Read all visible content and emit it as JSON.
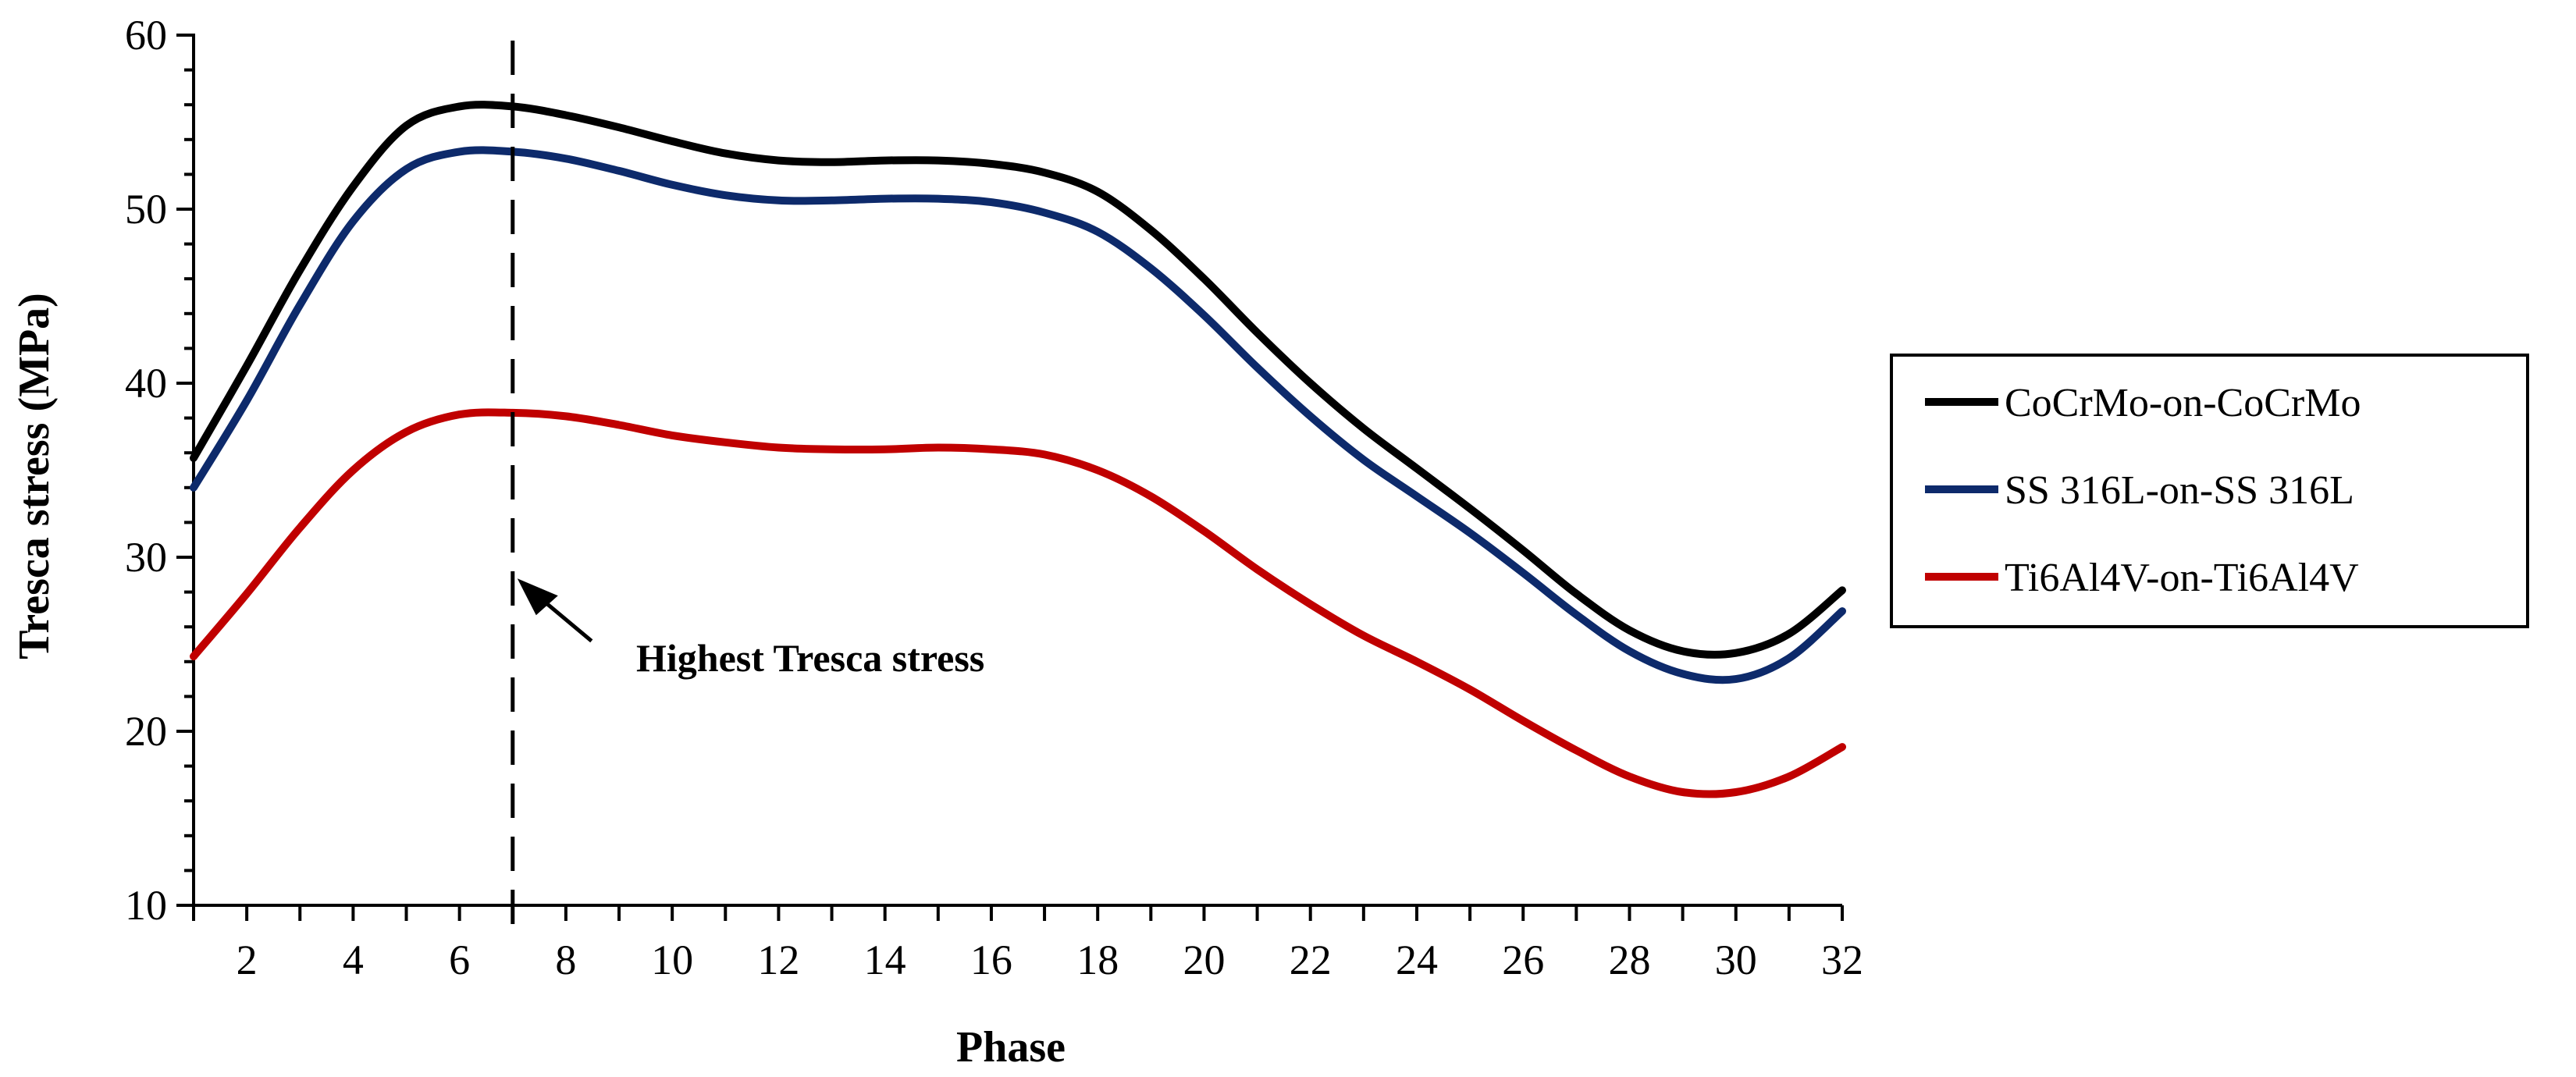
{
  "chart_data": {
    "type": "line",
    "title": "",
    "xlabel": "Phase",
    "ylabel": "Tresca stress (MPa)",
    "xlim": [
      1,
      32
    ],
    "ylim": [
      10,
      60
    ],
    "xticks": [
      "2",
      "4",
      "6",
      "8",
      "10",
      "12",
      "14",
      "16",
      "18",
      "20",
      "22",
      "24",
      "26",
      "28",
      "30",
      "32"
    ],
    "yticks": [
      "10",
      "20",
      "30",
      "40",
      "50",
      "60"
    ],
    "x": [
      1,
      2,
      3,
      4,
      5,
      6,
      7,
      8,
      9,
      10,
      11,
      12,
      13,
      14,
      15,
      16,
      17,
      18,
      19,
      20,
      21,
      22,
      23,
      24,
      25,
      26,
      27,
      28,
      29,
      30,
      31,
      32
    ],
    "series": [
      {
        "name": "CoCrMo-on-CoCrMo",
        "color": "#000000",
        "values": [
          35.7,
          41.0,
          46.5,
          51.3,
          54.8,
          55.9,
          55.9,
          55.4,
          54.7,
          53.9,
          53.2,
          52.8,
          52.7,
          52.8,
          52.8,
          52.6,
          52.1,
          51.0,
          48.8,
          46.0,
          42.9,
          40.0,
          37.4,
          35.1,
          32.8,
          30.4,
          27.9,
          25.8,
          24.6,
          24.5,
          25.6,
          28.1
        ]
      },
      {
        "name": "SS 316L-on-SS 316L",
        "color": "#0d2a6b",
        "values": [
          34.0,
          39.0,
          44.5,
          49.3,
          52.3,
          53.3,
          53.3,
          52.9,
          52.2,
          51.4,
          50.8,
          50.5,
          50.5,
          50.6,
          50.6,
          50.4,
          49.8,
          48.7,
          46.6,
          43.9,
          40.9,
          38.1,
          35.6,
          33.5,
          31.4,
          29.1,
          26.7,
          24.6,
          23.3,
          23.0,
          24.2,
          26.9
        ]
      },
      {
        "name": "Ti6Al4V-on-Ti6Al4V",
        "color": "#c00000",
        "values": [
          24.3,
          27.9,
          31.7,
          35.0,
          37.2,
          38.2,
          38.3,
          38.1,
          37.6,
          37.0,
          36.6,
          36.3,
          36.2,
          36.2,
          36.3,
          36.2,
          35.9,
          35.0,
          33.5,
          31.5,
          29.3,
          27.3,
          25.5,
          24.0,
          22.4,
          20.6,
          18.9,
          17.4,
          16.5,
          16.5,
          17.4,
          19.1
        ]
      }
    ],
    "annotations": [
      {
        "text": "Highest Tresca stress",
        "x": 7,
        "y": 29,
        "type": "arrow"
      }
    ],
    "vline_x": 7,
    "legend_position": "right"
  }
}
